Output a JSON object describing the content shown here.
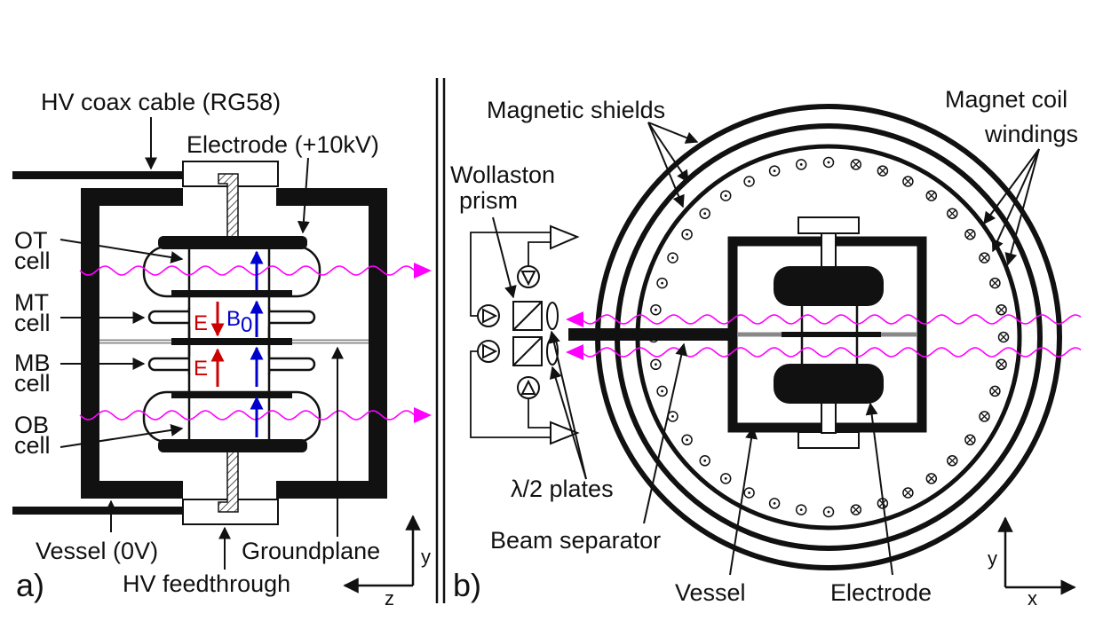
{
  "panel_a": {
    "tag": "a)",
    "labels": {
      "hv_coax": "HV coax cable (RG58)",
      "electrode": "Electrode (+10kV)",
      "ot_1": "OT",
      "ot_2": "cell",
      "mt_1": "MT",
      "mt_2": "cell",
      "mb_1": "MB",
      "mb_2": "cell",
      "ob_1": "OB",
      "ob_2": "cell",
      "vessel": "Vessel (0V)",
      "groundplane": "Groundplane",
      "hv_feed": "HV feedthrough",
      "e_field_top": "E",
      "e_field_bottom": "E",
      "b_field": "B",
      "b_sub": "0"
    },
    "axes": {
      "vertical": "y",
      "horizontal": "z"
    }
  },
  "panel_b": {
    "tag": "b)",
    "labels": {
      "magnetic_shields": "Magnetic shields",
      "coil_1": "Magnet coil",
      "coil_2": "windings",
      "wollaston_1": "Wollaston",
      "wollaston_2": "prism",
      "half_wave": "λ/2 plates",
      "beam_sep": "Beam separator",
      "vessel": "Vessel",
      "electrode": "Electrode"
    },
    "axes": {
      "vertical": "y",
      "horizontal": "x"
    },
    "symbols": {
      "out_of_page": "⊙",
      "into_page": "⊗"
    }
  },
  "colors": {
    "laser": "#ff00ff",
    "e_field": "#cc0000",
    "b_field": "#0000cc",
    "ink": "#111111"
  }
}
